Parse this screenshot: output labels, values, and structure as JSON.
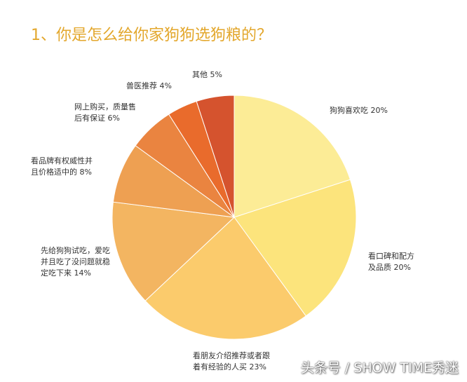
{
  "chart_data": {
    "type": "pie",
    "title": "1、你是怎么给你家狗狗选狗粮的？",
    "start_angle": "12 o'clock, clockwise",
    "slices": [
      {
        "label_lines": [
          "狗狗喜欢吃 20%"
        ],
        "value": 20,
        "color": "#fcec96"
      },
      {
        "label_lines": [
          "看口碑和配方",
          "及品质 20%"
        ],
        "value": 20,
        "color": "#fce47c"
      },
      {
        "label_lines": [
          "看朋友介绍推荐或者跟",
          "着有经验的人买   23%"
        ],
        "value": 23,
        "color": "#fbcb6c"
      },
      {
        "label_lines": [
          "先给狗狗试吃，爱吃",
          "并且吃了没问题就稳",
          "定吃下来 14%"
        ],
        "value": 14,
        "color": "#f3b561"
      },
      {
        "label_lines": [
          "看品牌有权威性并",
          "且价格适中的 8%"
        ],
        "value": 8,
        "color": "#eea052"
      },
      {
        "label_lines": [
          "网上购买，质量售",
          "后有保证 6%"
        ],
        "value": 6,
        "color": "#ea8440"
      },
      {
        "label_lines": [
          "兽医推荐 4%"
        ],
        "value": 4,
        "color": "#e96b2c"
      },
      {
        "label_lines": [
          "其他 5%"
        ],
        "value": 5,
        "color": "#d5532e"
      }
    ]
  },
  "watermark": "头条号 / SHOW TIME秀迷"
}
